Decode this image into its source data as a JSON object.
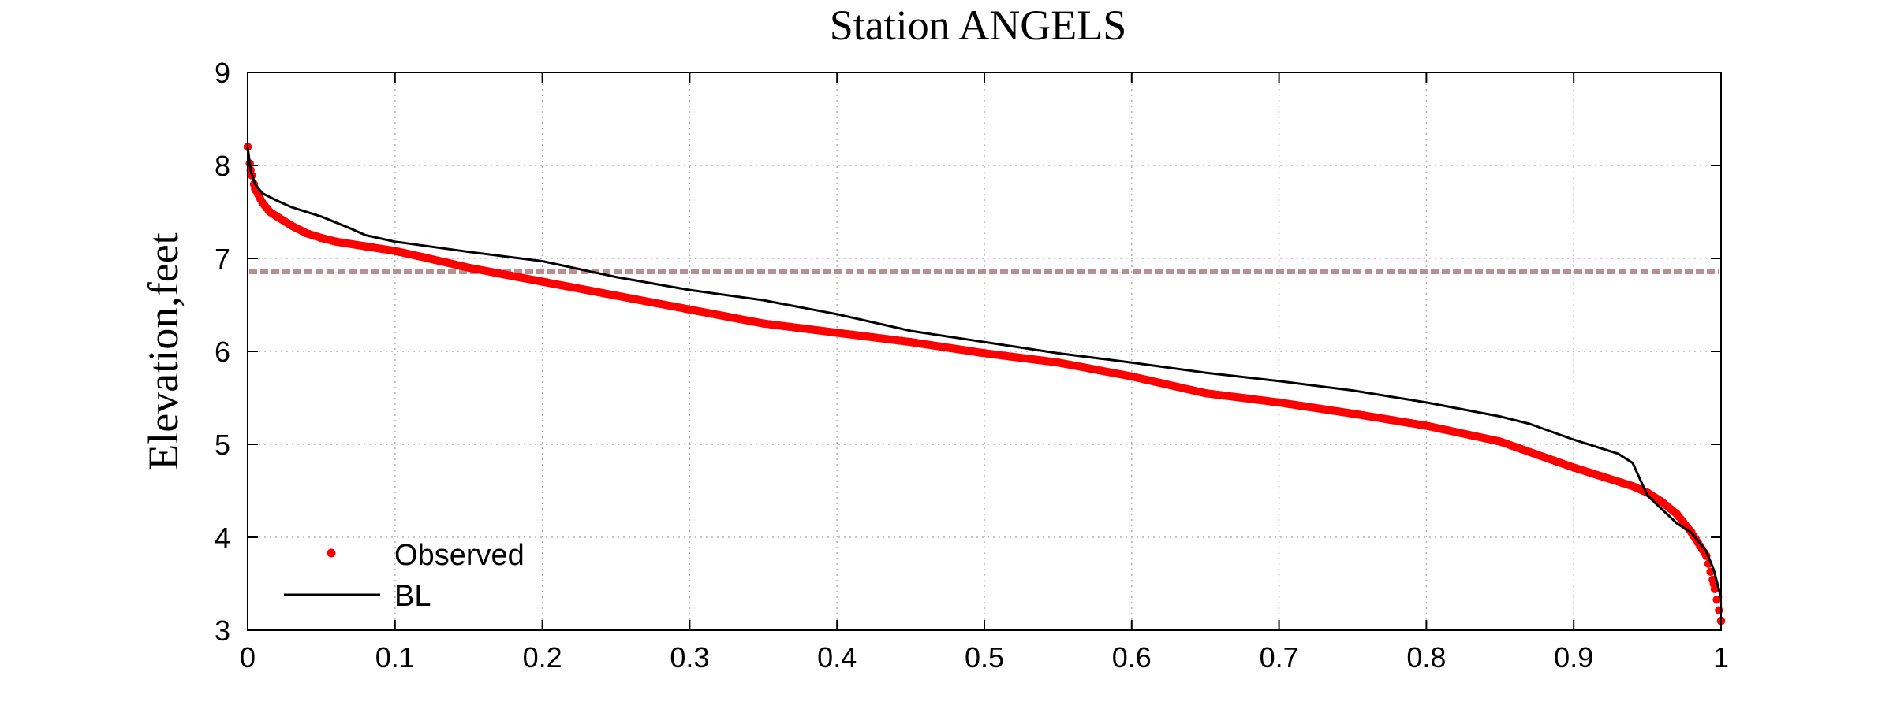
{
  "chart_data": {
    "type": "line",
    "title": "Station ANGELS",
    "xlabel": "",
    "ylabel": "Elevation,feet",
    "xlim": [
      0,
      1
    ],
    "ylim": [
      3,
      9
    ],
    "xticks": [
      0,
      0.1,
      0.2,
      0.3,
      0.4,
      0.5,
      0.6,
      0.7,
      0.8,
      0.9,
      1
    ],
    "xtick_labels": [
      "0",
      "0.1",
      "0.2",
      "0.3",
      "0.4",
      "0.5",
      "0.6",
      "0.7",
      "0.8",
      "0.9",
      "1"
    ],
    "yticks": [
      3,
      4,
      5,
      6,
      7,
      8,
      9
    ],
    "ytick_labels": [
      "3",
      "4",
      "5",
      "6",
      "7",
      "8",
      "9"
    ],
    "grid": true,
    "legend_position": "bottom-left",
    "reference_line": {
      "y": 6.86,
      "color": "#b98f8f"
    },
    "series": [
      {
        "name": "Observed",
        "style": "dots",
        "color": "#ff0000",
        "x": [
          0,
          0.002,
          0.005,
          0.01,
          0.015,
          0.02,
          0.03,
          0.04,
          0.05,
          0.06,
          0.08,
          0.1,
          0.12,
          0.15,
          0.2,
          0.25,
          0.3,
          0.35,
          0.4,
          0.45,
          0.5,
          0.55,
          0.6,
          0.65,
          0.7,
          0.75,
          0.8,
          0.85,
          0.9,
          0.92,
          0.94,
          0.95,
          0.96,
          0.97,
          0.98,
          0.99,
          0.995,
          1.0
        ],
        "y": [
          8.2,
          7.95,
          7.75,
          7.6,
          7.5,
          7.45,
          7.35,
          7.27,
          7.22,
          7.18,
          7.13,
          7.08,
          7.01,
          6.9,
          6.75,
          6.6,
          6.45,
          6.3,
          6.2,
          6.1,
          5.98,
          5.88,
          5.73,
          5.55,
          5.45,
          5.33,
          5.2,
          5.03,
          4.75,
          4.65,
          4.55,
          4.48,
          4.38,
          4.25,
          4.05,
          3.8,
          3.5,
          3.1
        ]
      },
      {
        "name": "BL",
        "style": "line",
        "color": "#000000",
        "x": [
          0,
          0.002,
          0.005,
          0.01,
          0.02,
          0.03,
          0.05,
          0.07,
          0.08,
          0.1,
          0.15,
          0.2,
          0.25,
          0.3,
          0.35,
          0.4,
          0.45,
          0.5,
          0.55,
          0.6,
          0.65,
          0.7,
          0.75,
          0.8,
          0.85,
          0.87,
          0.9,
          0.92,
          0.93,
          0.94,
          0.95,
          0.96,
          0.97,
          0.98,
          0.99,
          0.995,
          1.0
        ],
        "y": [
          8.2,
          7.95,
          7.8,
          7.7,
          7.62,
          7.55,
          7.45,
          7.32,
          7.25,
          7.18,
          7.07,
          6.97,
          6.8,
          6.66,
          6.55,
          6.4,
          6.22,
          6.1,
          5.98,
          5.88,
          5.77,
          5.68,
          5.58,
          5.45,
          5.3,
          5.22,
          5.05,
          4.95,
          4.9,
          4.8,
          4.45,
          4.3,
          4.15,
          4.05,
          3.85,
          3.65,
          3.35
        ]
      }
    ]
  }
}
